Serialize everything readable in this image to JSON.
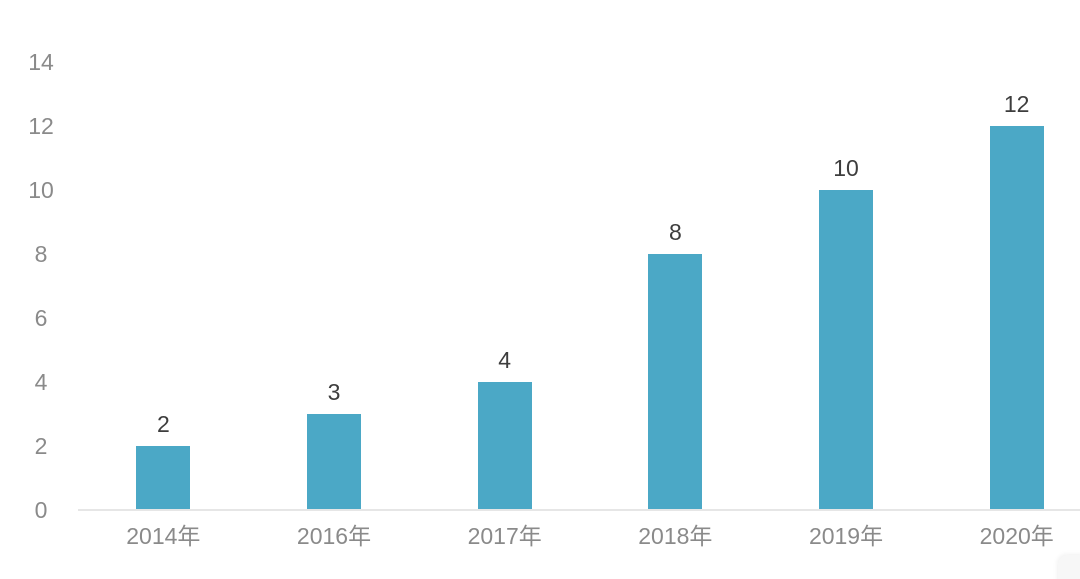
{
  "chart_data": {
    "type": "bar",
    "title": "",
    "xlabel": "",
    "ylabel": "",
    "categories": [
      "2014年",
      "2016年",
      "2017年",
      "2018年",
      "2019年",
      "2020年"
    ],
    "values": [
      2,
      3,
      4,
      8,
      10,
      12
    ],
    "value_labels": [
      "2",
      "3",
      "4",
      "8",
      "10",
      "12"
    ],
    "ylim": [
      0,
      14
    ],
    "yticks": [
      0,
      2,
      4,
      6,
      8,
      10,
      12,
      14
    ],
    "grid": false,
    "legend": null,
    "colors": {
      "bar": "#4ba8c6",
      "value_label": "#3d3d3d",
      "tick_label": "#8a8a8a",
      "axis_line": "#e6e6e6",
      "background": "#ffffff"
    }
  }
}
